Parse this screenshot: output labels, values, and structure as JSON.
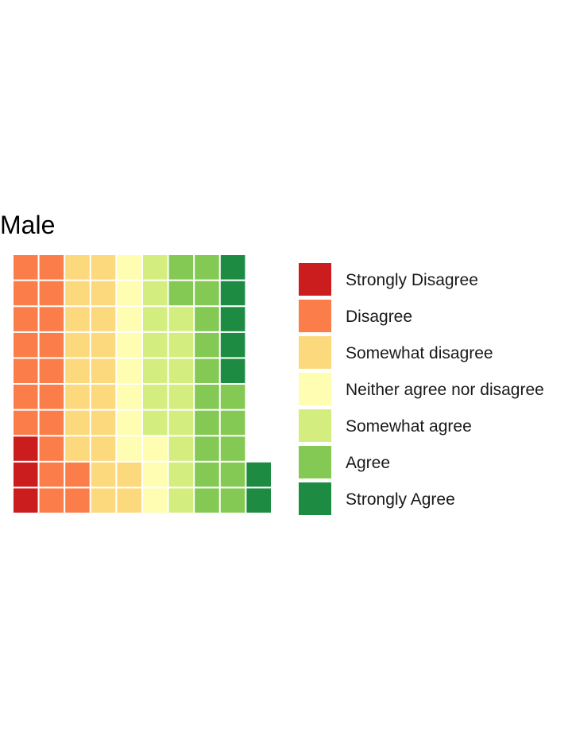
{
  "chart_data": {
    "type": "waffle",
    "title": "Male",
    "legend": {
      "placement": "right",
      "entries": [
        {
          "label": "Strongly Disagree",
          "color": "#cb1c1e"
        },
        {
          "label": "Disagree",
          "color": "#fa7d4a"
        },
        {
          "label": "Somewhat disagree",
          "color": "#fcd97c"
        },
        {
          "label": "Neither agree nor disagree",
          "color": "#fefdb2"
        },
        {
          "label": "Somewhat agree",
          "color": "#d3ee7e"
        },
        {
          "label": "Agree",
          "color": "#83c953"
        },
        {
          "label": "Strongly Agree",
          "color": "#1d8b41"
        }
      ]
    },
    "rows": 10,
    "columns": 10,
    "fill_order": "column-wise, bottom to top, left to right",
    "counts": [
      3,
      19,
      20,
      11,
      15,
      17,
      7
    ],
    "total": 92
  }
}
